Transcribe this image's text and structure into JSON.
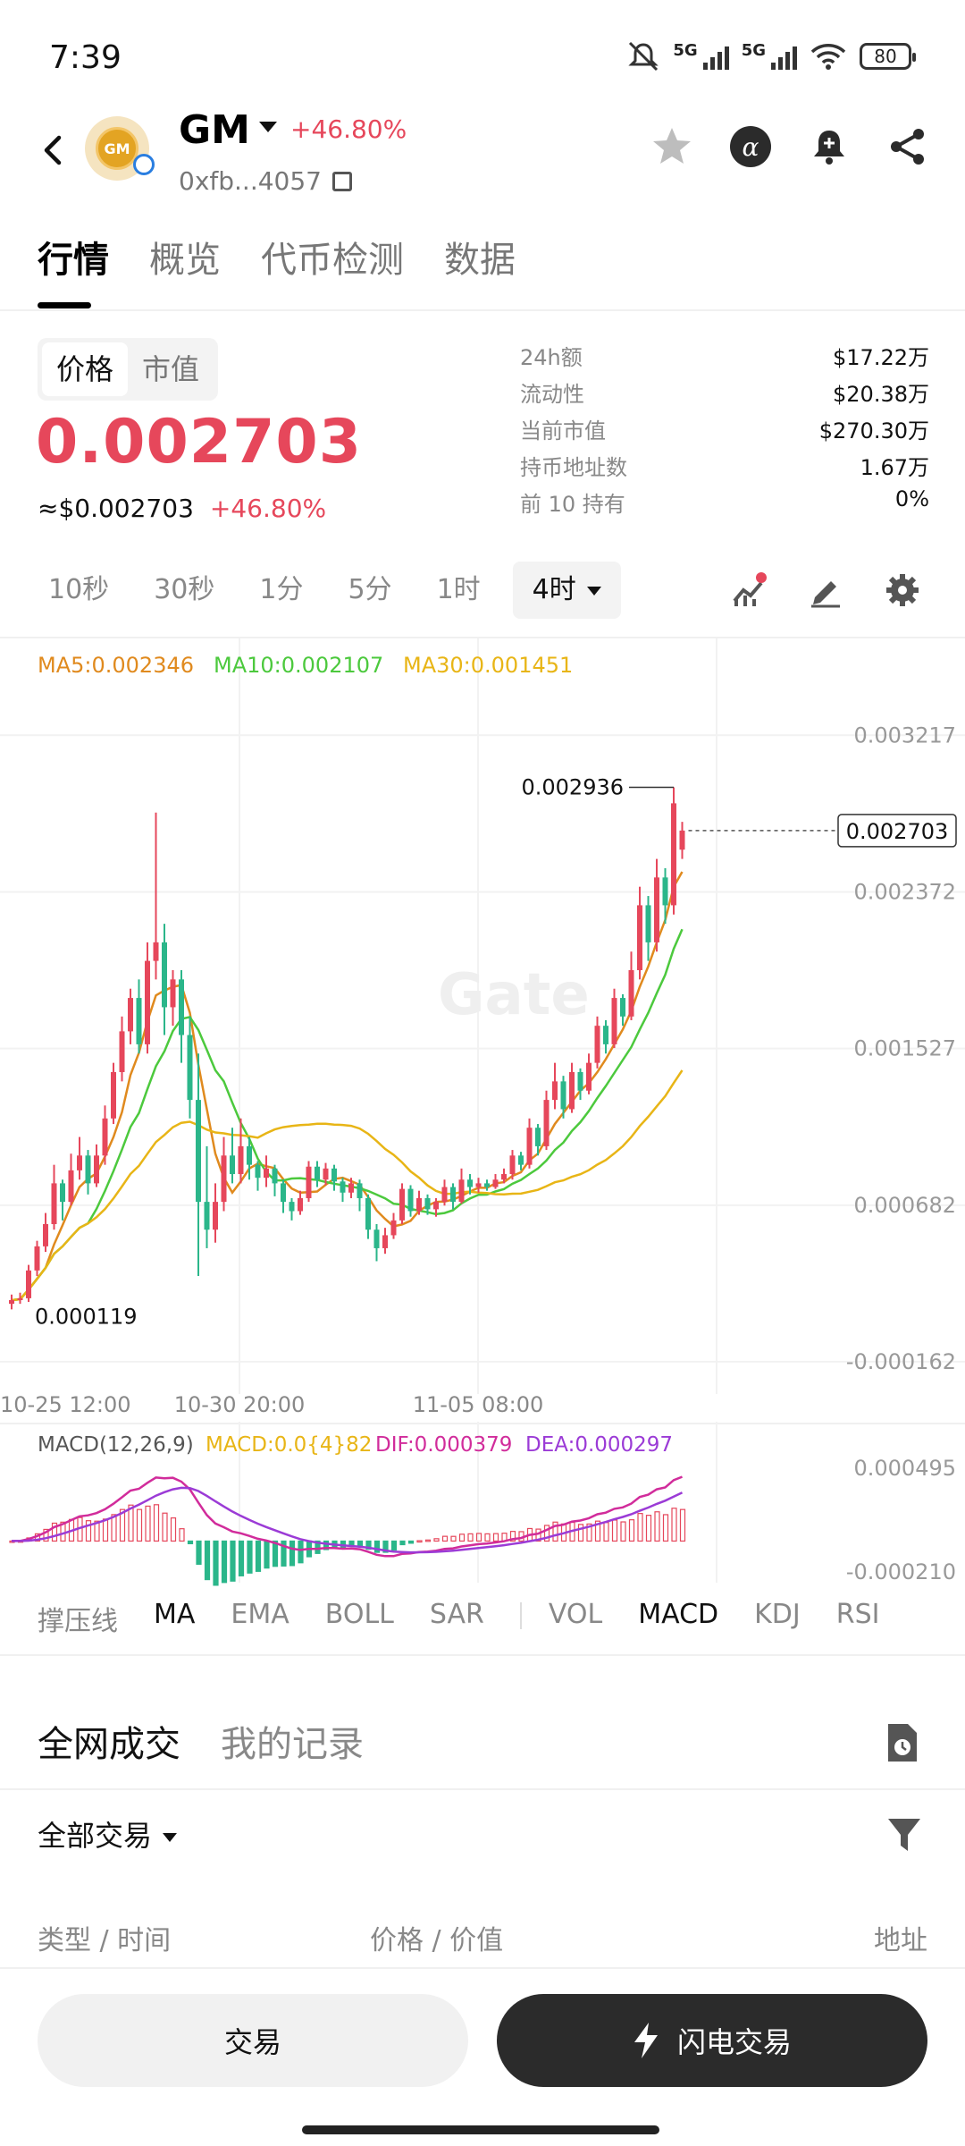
{
  "status_bar": {
    "time": "7:39",
    "network_1": "5G",
    "network_2": "5G",
    "battery": "80"
  },
  "header": {
    "symbol": "GM",
    "logo_text": "GM",
    "change": "+46.80%",
    "address": "0xfb...4057"
  },
  "tabs": [
    {
      "label": "行情"
    },
    {
      "label": "概览"
    },
    {
      "label": "代币检测"
    },
    {
      "label": "数据"
    }
  ],
  "price_panel": {
    "toggle": [
      {
        "label": "价格"
      },
      {
        "label": "市值"
      }
    ],
    "price": "0.002703",
    "usd_price": "≈$0.002703",
    "usd_change": "+46.80%",
    "stats": [
      {
        "label": "24h额",
        "value": "$17.22万"
      },
      {
        "label": "流动性",
        "value": "$20.38万"
      },
      {
        "label": "当前市值",
        "value": "$270.30万"
      },
      {
        "label": "持币地址数",
        "value": "1.67万"
      },
      {
        "label": "前 10 持有",
        "value": "0%"
      }
    ]
  },
  "timeframes": [
    {
      "label": "10秒"
    },
    {
      "label": "30秒"
    },
    {
      "label": "1分"
    },
    {
      "label": "5分"
    },
    {
      "label": "1时"
    },
    {
      "label": "4时"
    }
  ],
  "chart_data": {
    "type": "candlestick",
    "ma_legend": [
      {
        "label": "MA5:0.002346",
        "color": "#e08a1e"
      },
      {
        "label": "MA10:0.002107",
        "color": "#4cc93d"
      },
      {
        "label": "MA30:0.001451",
        "color": "#e8b516"
      }
    ],
    "y_ticks": [
      "0.003217",
      "0.002372",
      "0.001527",
      "0.000682",
      "-0.000162"
    ],
    "y_tick_values": [
      0.003217,
      0.002372,
      0.001527,
      0.000682,
      -0.000162
    ],
    "x_ticks": [
      "10-25 12:00",
      "10-30 20:00",
      "11-05 08:00"
    ],
    "high_label": "0.002936",
    "low_label": "0.000119",
    "current_price_label": "0.002703",
    "watermark": "Gate",
    "candles": [
      {
        "o": 0.00015,
        "c": 0.00017,
        "h": 0.0002,
        "l": 0.00012
      },
      {
        "o": 0.00017,
        "c": 0.00018,
        "h": 0.00021,
        "l": 0.00015
      },
      {
        "o": 0.00018,
        "c": 0.00033,
        "h": 0.00036,
        "l": 0.00016
      },
      {
        "o": 0.00033,
        "c": 0.00046,
        "h": 0.00049,
        "l": 0.0003
      },
      {
        "o": 0.00046,
        "c": 0.00058,
        "h": 0.00064,
        "l": 0.00043
      },
      {
        "o": 0.00058,
        "c": 0.0008,
        "h": 0.0009,
        "l": 0.00055
      },
      {
        "o": 0.0008,
        "c": 0.0007,
        "h": 0.00082,
        "l": 0.0006
      },
      {
        "o": 0.0007,
        "c": 0.00087,
        "h": 0.00096,
        "l": 0.00068
      },
      {
        "o": 0.00087,
        "c": 0.00095,
        "h": 0.00105,
        "l": 0.00082
      },
      {
        "o": 0.00095,
        "c": 0.0008,
        "h": 0.00098,
        "l": 0.00074
      },
      {
        "o": 0.0008,
        "c": 0.00095,
        "h": 0.00101,
        "l": 0.00078
      },
      {
        "o": 0.00095,
        "c": 0.00115,
        "h": 0.00122,
        "l": 0.0009
      },
      {
        "o": 0.00115,
        "c": 0.0014,
        "h": 0.00145,
        "l": 0.00112
      },
      {
        "o": 0.0014,
        "c": 0.00162,
        "h": 0.0017,
        "l": 0.00135
      },
      {
        "o": 0.00162,
        "c": 0.0018,
        "h": 0.00185,
        "l": 0.00155
      },
      {
        "o": 0.0018,
        "c": 0.00155,
        "h": 0.0019,
        "l": 0.0015
      },
      {
        "o": 0.00155,
        "c": 0.002,
        "h": 0.0021,
        "l": 0.0015
      },
      {
        "o": 0.002,
        "c": 0.0021,
        "h": 0.0028,
        "l": 0.0019
      },
      {
        "o": 0.0021,
        "c": 0.00175,
        "h": 0.0022,
        "l": 0.0016
      },
      {
        "o": 0.00175,
        "c": 0.0019,
        "h": 0.00195,
        "l": 0.00165
      },
      {
        "o": 0.0019,
        "c": 0.0016,
        "h": 0.00195,
        "l": 0.00145
      },
      {
        "o": 0.0016,
        "c": 0.00125,
        "h": 0.0017,
        "l": 0.00115
      },
      {
        "o": 0.00125,
        "c": 0.0007,
        "h": 0.0015,
        "l": 0.0003
      },
      {
        "o": 0.0007,
        "c": 0.00055,
        "h": 0.001,
        "l": 0.00045
      },
      {
        "o": 0.00055,
        "c": 0.0007,
        "h": 0.0008,
        "l": 0.00048
      },
      {
        "o": 0.0007,
        "c": 0.00095,
        "h": 0.00105,
        "l": 0.00065
      },
      {
        "o": 0.00095,
        "c": 0.00085,
        "h": 0.0011,
        "l": 0.0008
      },
      {
        "o": 0.00085,
        "c": 0.001,
        "h": 0.00115,
        "l": 0.0008
      },
      {
        "o": 0.001,
        "c": 0.0009,
        "h": 0.00105,
        "l": 0.00082
      },
      {
        "o": 0.0009,
        "c": 0.00083,
        "h": 0.00092,
        "l": 0.00076
      },
      {
        "o": 0.00083,
        "c": 0.00088,
        "h": 0.00095,
        "l": 0.00078
      },
      {
        "o": 0.00088,
        "c": 0.0008,
        "h": 0.0009,
        "l": 0.00073
      },
      {
        "o": 0.0008,
        "c": 0.0007,
        "h": 0.00082,
        "l": 0.00064
      },
      {
        "o": 0.0007,
        "c": 0.00065,
        "h": 0.00072,
        "l": 0.0006
      },
      {
        "o": 0.00065,
        "c": 0.00072,
        "h": 0.00076,
        "l": 0.00063
      },
      {
        "o": 0.00072,
        "c": 0.00089,
        "h": 0.00092,
        "l": 0.0007
      },
      {
        "o": 0.00089,
        "c": 0.00082,
        "h": 0.00092,
        "l": 0.00078
      },
      {
        "o": 0.00082,
        "c": 0.00088,
        "h": 0.00091,
        "l": 0.00079
      },
      {
        "o": 0.00088,
        "c": 0.00081,
        "h": 0.0009,
        "l": 0.00076
      },
      {
        "o": 0.00081,
        "c": 0.00075,
        "h": 0.00083,
        "l": 0.0007
      },
      {
        "o": 0.00075,
        "c": 0.0008,
        "h": 0.00083,
        "l": 0.00072
      },
      {
        "o": 0.0008,
        "c": 0.00072,
        "h": 0.00082,
        "l": 0.00065
      },
      {
        "o": 0.00072,
        "c": 0.00055,
        "h": 0.00074,
        "l": 0.0005
      },
      {
        "o": 0.00055,
        "c": 0.00045,
        "h": 0.00058,
        "l": 0.00038
      },
      {
        "o": 0.00045,
        "c": 0.00052,
        "h": 0.00056,
        "l": 0.00042
      },
      {
        "o": 0.00052,
        "c": 0.0006,
        "h": 0.00064,
        "l": 0.0005
      },
      {
        "o": 0.0006,
        "c": 0.00077,
        "h": 0.0008,
        "l": 0.00058
      },
      {
        "o": 0.00077,
        "c": 0.00065,
        "h": 0.00079,
        "l": 0.00062
      },
      {
        "o": 0.00065,
        "c": 0.00072,
        "h": 0.00076,
        "l": 0.00063
      },
      {
        "o": 0.00072,
        "c": 0.00066,
        "h": 0.00074,
        "l": 0.00063
      },
      {
        "o": 0.00066,
        "c": 0.0007,
        "h": 0.00072,
        "l": 0.00062
      },
      {
        "o": 0.0007,
        "c": 0.00078,
        "h": 0.00082,
        "l": 0.00068
      },
      {
        "o": 0.00078,
        "c": 0.0007,
        "h": 0.0008,
        "l": 0.00066
      },
      {
        "o": 0.0007,
        "c": 0.00082,
        "h": 0.00088,
        "l": 0.00069
      },
      {
        "o": 0.00082,
        "c": 0.00078,
        "h": 0.00085,
        "l": 0.00074
      },
      {
        "o": 0.00078,
        "c": 0.0008,
        "h": 0.00083,
        "l": 0.00075
      },
      {
        "o": 0.0008,
        "c": 0.00078,
        "h": 0.00082,
        "l": 0.00076
      },
      {
        "o": 0.00078,
        "c": 0.00082,
        "h": 0.00085,
        "l": 0.00077
      },
      {
        "o": 0.00082,
        "c": 0.00085,
        "h": 0.00088,
        "l": 0.0008
      },
      {
        "o": 0.00085,
        "c": 0.00095,
        "h": 0.00098,
        "l": 0.00082
      },
      {
        "o": 0.00095,
        "c": 0.0009,
        "h": 0.00097,
        "l": 0.00087
      },
      {
        "o": 0.0009,
        "c": 0.0011,
        "h": 0.00115,
        "l": 0.00088
      },
      {
        "o": 0.0011,
        "c": 0.001,
        "h": 0.00112,
        "l": 0.00095
      },
      {
        "o": 0.001,
        "c": 0.00125,
        "h": 0.0013,
        "l": 0.00098
      },
      {
        "o": 0.00125,
        "c": 0.00135,
        "h": 0.00145,
        "l": 0.0012
      },
      {
        "o": 0.00135,
        "c": 0.0012,
        "h": 0.00138,
        "l": 0.00115
      },
      {
        "o": 0.0012,
        "c": 0.0014,
        "h": 0.00145,
        "l": 0.00118
      },
      {
        "o": 0.0014,
        "c": 0.0013,
        "h": 0.00142,
        "l": 0.00125
      },
      {
        "o": 0.0013,
        "c": 0.00145,
        "h": 0.0015,
        "l": 0.00128
      },
      {
        "o": 0.00145,
        "c": 0.00165,
        "h": 0.0017,
        "l": 0.00142
      },
      {
        "o": 0.00165,
        "c": 0.00155,
        "h": 0.00168,
        "l": 0.0015
      },
      {
        "o": 0.00155,
        "c": 0.0018,
        "h": 0.00185,
        "l": 0.00153
      },
      {
        "o": 0.0018,
        "c": 0.0017,
        "h": 0.00182,
        "l": 0.00165
      },
      {
        "o": 0.0017,
        "c": 0.00195,
        "h": 0.00205,
        "l": 0.00168
      },
      {
        "o": 0.00195,
        "c": 0.0023,
        "h": 0.0024,
        "l": 0.0019
      },
      {
        "o": 0.0023,
        "c": 0.0021,
        "h": 0.00235,
        "l": 0.002
      },
      {
        "o": 0.0021,
        "c": 0.00245,
        "h": 0.00255,
        "l": 0.00205
      },
      {
        "o": 0.00245,
        "c": 0.0023,
        "h": 0.0025,
        "l": 0.0022
      },
      {
        "o": 0.0023,
        "c": 0.00285,
        "h": 0.002936,
        "l": 0.00225
      },
      {
        "o": 0.0026,
        "c": 0.002703,
        "h": 0.00275,
        "l": 0.00255
      }
    ]
  },
  "macd_panel": {
    "label": "MACD(12,26,9)",
    "macd": "MACD:0.0{4}82",
    "dif": "DIF:0.000379",
    "dea": "DEA:0.000297",
    "y_ticks": [
      "0.000495",
      "-0.000210"
    ],
    "colors": {
      "macd": "#e8b516",
      "dif": "#d12c9b",
      "dea": "#9b3bd6"
    }
  },
  "indicators": [
    {
      "label": "撑压线"
    },
    {
      "label": "MA"
    },
    {
      "label": "EMA"
    },
    {
      "label": "BOLL"
    },
    {
      "label": "SAR"
    },
    {
      "label": "VOL"
    },
    {
      "label": "MACD"
    },
    {
      "label": "KDJ"
    },
    {
      "label": "RSI"
    }
  ],
  "trades": {
    "tabs": [
      {
        "label": "全网成交"
      },
      {
        "label": "我的记录"
      }
    ],
    "filter_label": "全部交易",
    "col_type_time": "类型 / 时间",
    "col_price_value": "价格 / 价值",
    "col_address": "地址"
  },
  "actions": {
    "trade": "交易",
    "flash_trade": "闪电交易"
  },
  "colors": {
    "up": "#e6475b",
    "down": "#2bb68a",
    "accent_dark": "#2b2b2b"
  }
}
